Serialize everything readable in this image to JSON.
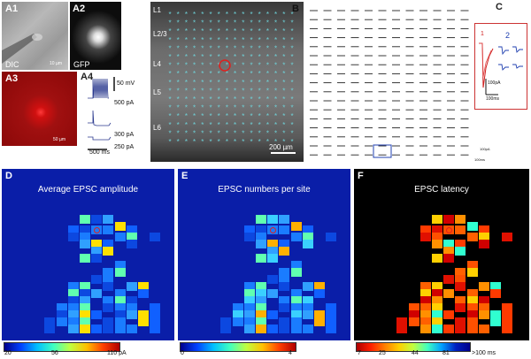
{
  "panels": {
    "A1": {
      "label": "A1",
      "sublabel": "DIC",
      "scale": "10 µm"
    },
    "A2": {
      "label": "A2",
      "sublabel": "GFP"
    },
    "A3": {
      "label": "A3",
      "scale": "50 µm"
    },
    "A4": {
      "label": "A4",
      "scale_v": "50 mV",
      "scale_t": "500 ms",
      "currents": [
        "500 pA",
        "300 pA",
        "250 pA"
      ]
    },
    "B": {
      "label": "B",
      "layers": [
        "L1",
        "L2/3",
        "L4",
        "L5",
        "L6"
      ],
      "scale": "200 µm"
    },
    "C": {
      "label": "C",
      "site1": "1",
      "site2": "2",
      "scale_pa": "100pA",
      "scale_ms": "100ms",
      "map_scale_pa": "100pA",
      "map_scale_ms": "100ms"
    },
    "D": {
      "label": "D",
      "title": "Average EPSC amplitude",
      "ticks": [
        "20",
        "56",
        "110 pA"
      ]
    },
    "E": {
      "label": "E",
      "title": "EPSC numbers per site",
      "ticks": [
        "0",
        "4"
      ]
    },
    "F": {
      "label": "F",
      "title": "EPSC latency",
      "ticks": [
        "7",
        "25",
        "44",
        "81",
        ">100 ms"
      ]
    }
  },
  "colors": {
    "heat_bg_D": "#0a1ea8",
    "heat_bg_E": "#0a1ea8",
    "heat_bg_F": "#000000",
    "marker": "#e0201e",
    "grid_marker": "#6fd3d9"
  }
}
